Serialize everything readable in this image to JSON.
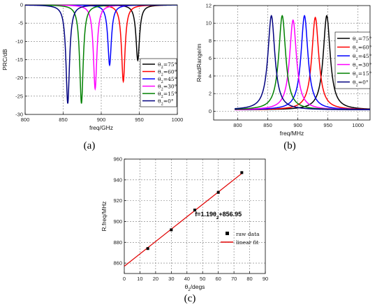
{
  "panels": {
    "a": {
      "tag": "(a)"
    },
    "b": {
      "tag": "(b)"
    },
    "c": {
      "tag": "(c)"
    }
  },
  "chart_data": [
    {
      "id": "a",
      "type": "line",
      "xlabel": "freq/GHz",
      "ylabel": "PRC/dB",
      "xlim": [
        800,
        1000
      ],
      "ylim": [
        -30,
        0
      ],
      "xticks": [
        800,
        850,
        900,
        950,
        1000
      ],
      "yticks": [
        0,
        -5,
        -10,
        -15,
        -20,
        -25,
        -30
      ],
      "grid": true,
      "legend_position": "bottom-right",
      "series": [
        {
          "name": "θ2=75°",
          "color": "#000000",
          "center": 948,
          "depth": -15.2,
          "width": 2.8
        },
        {
          "name": "θ2=60°",
          "color": "#ff0000",
          "center": 929,
          "depth": -21.0,
          "width": 2.8
        },
        {
          "name": "θ2=45°",
          "color": "#0000ff",
          "center": 911,
          "depth": -16.5,
          "width": 2.8
        },
        {
          "name": "θ2=30°",
          "color": "#ff00ff",
          "center": 892,
          "depth": -23.0,
          "width": 2.8
        },
        {
          "name": "θ2=15°",
          "color": "#008000",
          "center": 874,
          "depth": -27.0,
          "width": 2.8
        },
        {
          "name": "θ2=0°",
          "color": "#000080",
          "center": 856,
          "depth": -27.0,
          "width": 2.8
        }
      ]
    },
    {
      "id": "b",
      "type": "line",
      "xlabel": "freq/MHz",
      "ylabel": "ReadRange/m",
      "xlim": [
        760,
        1020
      ],
      "ylim": [
        -1,
        12
      ],
      "xticks": [
        800,
        850,
        900,
        950,
        1000
      ],
      "yticks": [
        0,
        2,
        4,
        6,
        8,
        10,
        12
      ],
      "grid": true,
      "legend_position": "right",
      "series": [
        {
          "name": "θ2=75°",
          "color": "#000000",
          "center": 948,
          "peak": 10.7,
          "width": 7
        },
        {
          "name": "θ2=60°",
          "color": "#ff0000",
          "center": 929,
          "peak": 10.5,
          "width": 7
        },
        {
          "name": "θ2=45°",
          "color": "#0000ff",
          "center": 911,
          "peak": 10.7,
          "width": 7
        },
        {
          "name": "θ2=30°",
          "color": "#ff00ff",
          "center": 892,
          "peak": 10.2,
          "width": 7
        },
        {
          "name": "θ2=15°",
          "color": "#008000",
          "center": 874,
          "peak": 10.7,
          "width": 7
        },
        {
          "name": "θ2=0°",
          "color": "#000080",
          "center": 856,
          "peak": 10.7,
          "width": 7
        }
      ]
    },
    {
      "id": "c",
      "type": "scatter",
      "xlabel": "θ2/degs",
      "ylabel": "R.freq/MHz",
      "xlim": [
        0,
        90
      ],
      "ylim": [
        850,
        960
      ],
      "xticks": [
        0,
        10,
        20,
        30,
        40,
        50,
        60,
        70,
        80,
        90
      ],
      "yticks": [
        860,
        880,
        900,
        920,
        940,
        960
      ],
      "grid": true,
      "legend_position": "center-right",
      "annotation": "f=1.19θ2+856.95",
      "series": [
        {
          "name": "raw data",
          "x": [
            15,
            30,
            45,
            60,
            75
          ],
          "y": [
            874,
            892,
            911,
            928,
            947
          ]
        },
        {
          "name": "linear fit",
          "slope": 1.19,
          "intercept": 856.95,
          "x_range": [
            0,
            75
          ]
        }
      ]
    }
  ]
}
